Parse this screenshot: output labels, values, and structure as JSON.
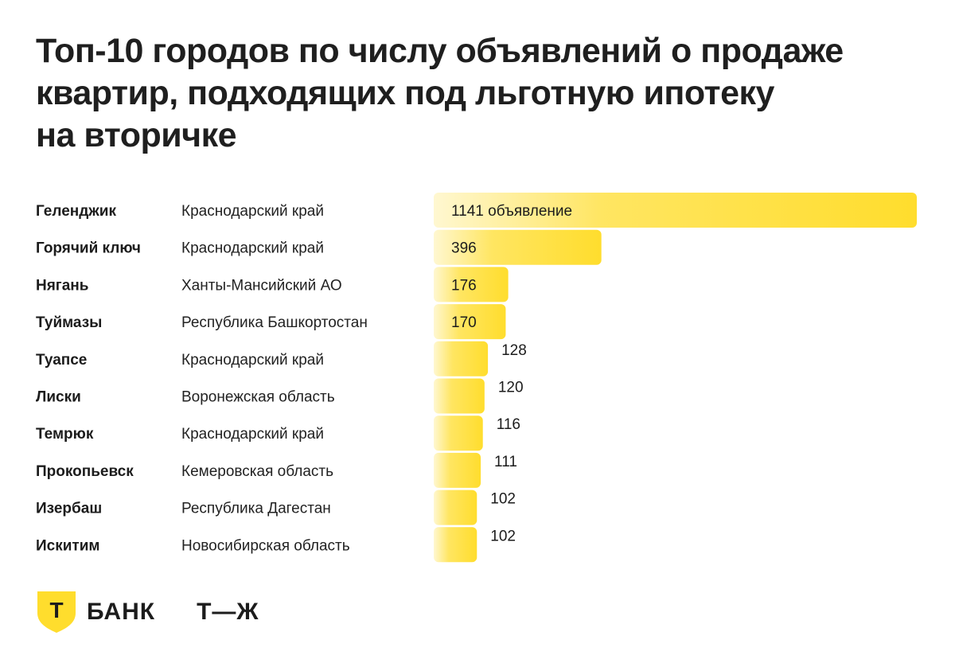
{
  "title_lines": [
    "Топ-10 городов по числу объявлений о продаже",
    "квартир, подходящих под льготную ипотеку",
    "на вторичке"
  ],
  "chart_data": {
    "type": "bar",
    "orientation": "horizontal",
    "categories": [
      "Геленджик",
      "Горячий ключ",
      "Нягань",
      "Туймазы",
      "Туапсе",
      "Лиски",
      "Темрюк",
      "Прокопьевск",
      "Изербаш",
      "Искитим"
    ],
    "regions": [
      "Краснодарский край",
      "Краснодарский край",
      "Ханты-Мансийский АО",
      "Республика Башкортостан",
      "Краснодарский край",
      "Воронежская область",
      "Краснодарский край",
      "Кемеровская область",
      "Республика Дагестан",
      "Новосибирская область"
    ],
    "values": [
      1141,
      396,
      176,
      170,
      128,
      120,
      116,
      111,
      102,
      102
    ],
    "value_labels": [
      "1141 объявление",
      "396",
      "176",
      "170",
      "128",
      "120",
      "116",
      "111",
      "102",
      "102"
    ],
    "xlim": [
      0,
      1141
    ],
    "bar_color": "#FFDD2D",
    "grid": false
  },
  "footer": {
    "bank_logo_letter": "Т",
    "bank_name": "БАНК",
    "journal_logo": "Т—Ж"
  },
  "colors": {
    "accent": "#FFDD2D",
    "text": "#1C1C1C"
  }
}
